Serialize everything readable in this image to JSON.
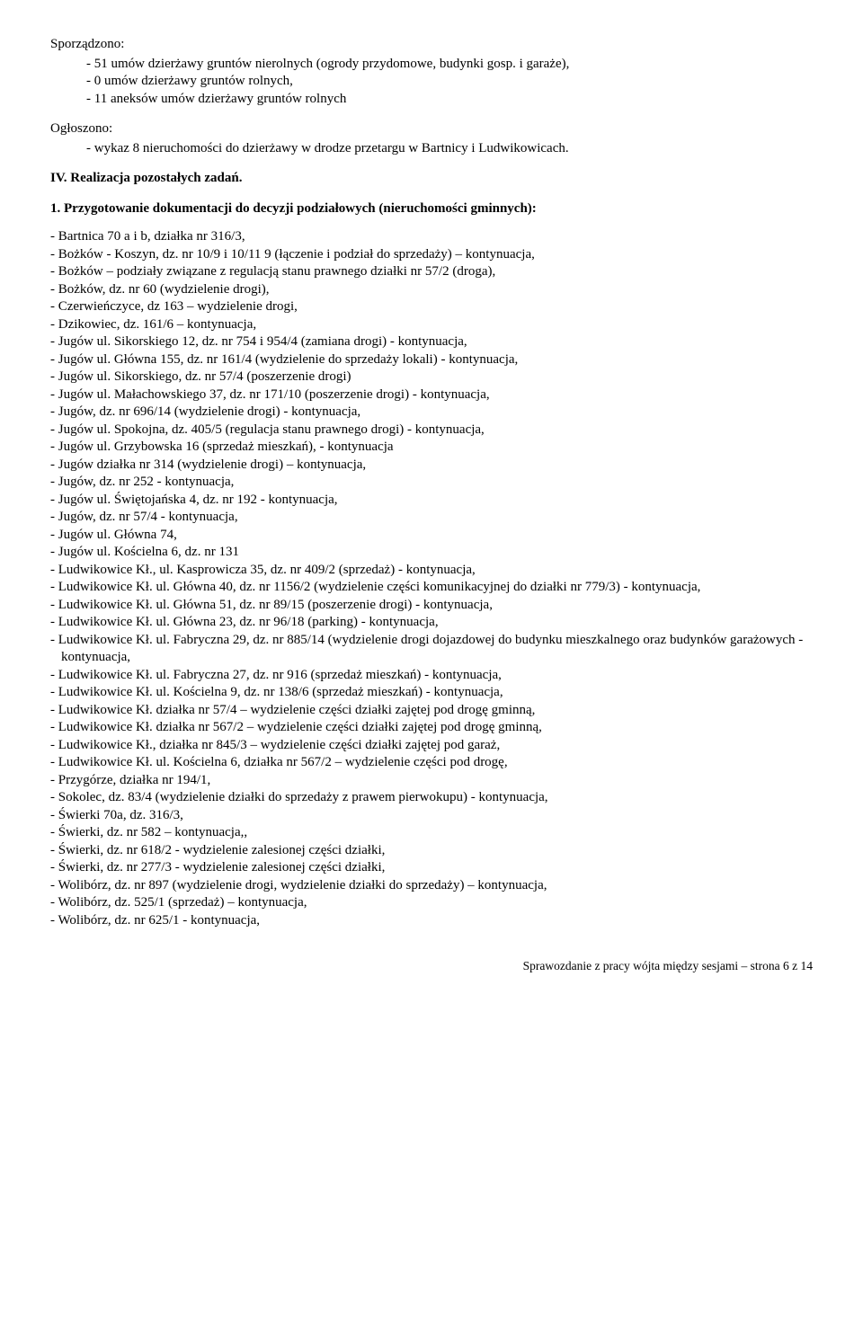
{
  "sporzadzono": {
    "label": "Sporządzono:",
    "items": [
      "- 51 umów dzierżawy gruntów nierolnych (ogrody przydomowe, budynki gosp. i garaże),",
      "- 0 umów dzierżawy gruntów rolnych,",
      "- 11 aneksów umów dzierżawy gruntów rolnych"
    ]
  },
  "ogloszono": {
    "label": "Ogłoszono:",
    "items": [
      "- wykaz 8 nieruchomości do dzierżawy w drodze przetargu w Bartnicy i Ludwikowicach."
    ]
  },
  "section_iv": "IV. Realizacja pozostałych zadań.",
  "num1": "1. Przygotowanie dokumentacji do decyzji podziałowych (nieruchomości gminnych):",
  "list": [
    "- Bartnica 70 a i b, działka nr 316/3,",
    "- Bożków - Koszyn, dz. nr 10/9 i 10/11 9 (łączenie i podział do sprzedaży) – kontynuacja,",
    "- Bożków – podziały związane z regulacją stanu prawnego działki nr 57/2 (droga),",
    "- Bożków, dz. nr 60 (wydzielenie drogi),",
    "- Czerwieńczyce, dz 163 – wydzielenie drogi,",
    "- Dzikowiec, dz. 161/6 – kontynuacja,",
    "- Jugów ul. Sikorskiego 12, dz. nr 754 i 954/4 (zamiana drogi) - kontynuacja,",
    "- Jugów ul. Główna 155, dz. nr 161/4 (wydzielenie do sprzedaży lokali) - kontynuacja,",
    "- Jugów ul. Sikorskiego, dz. nr 57/4 (poszerzenie drogi)",
    "- Jugów ul. Małachowskiego 37, dz. nr 171/10  (poszerzenie drogi) - kontynuacja,",
    "- Jugów, dz. nr 696/14 (wydzielenie drogi) - kontynuacja,",
    "- Jugów ul. Spokojna, dz. 405/5 (regulacja stanu prawnego drogi) - kontynuacja,",
    "- Jugów ul. Grzybowska 16 (sprzedaż mieszkań), - kontynuacja",
    "- Jugów działka nr 314 (wydzielenie drogi) – kontynuacja,",
    "- Jugów, dz. nr 252 - kontynuacja,",
    "- Jugów ul. Świętojańska 4, dz. nr 192 - kontynuacja,",
    "- Jugów, dz. nr 57/4 - kontynuacja,",
    "- Jugów ul. Główna 74,",
    "- Jugów ul. Kościelna 6, dz. nr 131",
    "- Ludwikowice Kł., ul. Kasprowicza 35, dz. nr 409/2 (sprzedaż) - kontynuacja,",
    "- Ludwikowice Kł. ul. Główna 40, dz. nr 1156/2 (wydzielenie części komunikacyjnej do działki nr 779/3) - kontynuacja,",
    "- Ludwikowice Kł. ul. Główna 51, dz. nr 89/15 (poszerzenie drogi) - kontynuacja,",
    "- Ludwikowice Kł. ul. Główna 23, dz. nr 96/18 (parking) - kontynuacja,",
    "- Ludwikowice Kł. ul. Fabryczna 29, dz. nr 885/14 (wydzielenie drogi dojazdowej do budynku mieszkalnego oraz budynków garażowych - kontynuacja,",
    "- Ludwikowice Kł. ul. Fabryczna 27, dz. nr 916 (sprzedaż mieszkań) - kontynuacja,",
    "- Ludwikowice Kł. ul. Kościelna 9, dz. nr 138/6 (sprzedaż mieszkań) - kontynuacja,",
    "- Ludwikowice Kł. działka nr 57/4 – wydzielenie części działki zajętej pod drogę gminną,",
    "- Ludwikowice Kł. działka nr 567/2 – wydzielenie części działki zajętej pod drogę gminną,",
    "- Ludwikowice Kł., działka nr 845/3 – wydzielenie części działki zajętej pod garaż,",
    "- Ludwikowice Kł. ul. Kościelna 6, działka nr 567/2 – wydzielenie części pod drogę,",
    "- Przygórze, działka nr 194/1,",
    "- Sokolec, dz. 83/4 (wydzielenie działki do sprzedaży z prawem pierwokupu) - kontynuacja,",
    "- Świerki 70a, dz. 316/3,",
    "- Świerki, dz. nr 582 – kontynuacja,,",
    "- Świerki, dz. nr 618/2 - wydzielenie zalesionej części działki,",
    "- Świerki, dz. nr 277/3 - wydzielenie zalesionej części działki,",
    "- Wolibórz, dz. nr 897 (wydzielenie drogi, wydzielenie działki do sprzedaży) – kontynuacja,",
    "- Wolibórz, dz. 525/1 (sprzedaż) – kontynuacja,",
    "- Wolibórz, dz. nr 625/1 - kontynuacja,"
  ],
  "footer": "Sprawozdanie z pracy wójta między sesjami – strona 6 z 14"
}
